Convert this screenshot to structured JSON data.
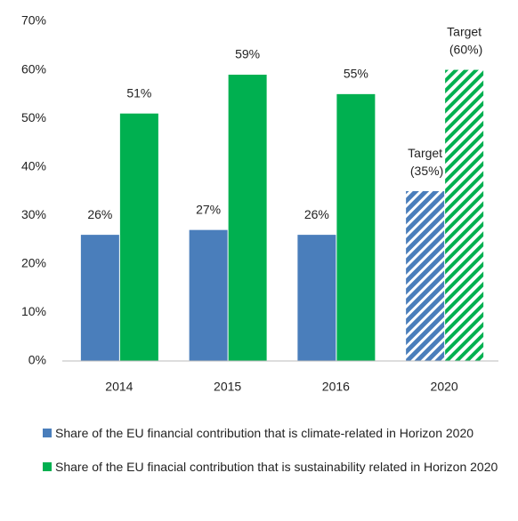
{
  "chart_data": {
    "type": "bar",
    "categories": [
      "2014",
      "2015",
      "2016",
      "2020"
    ],
    "series": [
      {
        "name": "Share of the EU financial contribution that is climate-related in Horizon 2020",
        "color": "#4a7ebb",
        "values": [
          26,
          27,
          26,
          35
        ],
        "value_labels": [
          "26%",
          "27%",
          "26%",
          "Target (35%)"
        ]
      },
      {
        "name": "Share of the EU finacial contribution that is sustainability related in Horizon 2020",
        "color": "#00b050",
        "values": [
          51,
          59,
          55,
          60
        ],
        "value_labels": [
          "51%",
          "59%",
          "55%",
          "Target (60%)"
        ]
      }
    ],
    "hatched": [
      false,
      false,
      false,
      true
    ],
    "ylim": [
      0,
      70
    ],
    "yticks": [
      {
        "value": 0,
        "label": "0%"
      },
      {
        "value": 10,
        "label": "10%"
      },
      {
        "value": 20,
        "label": "20%"
      },
      {
        "value": 30,
        "label": "30%"
      },
      {
        "value": 40,
        "label": "40%"
      },
      {
        "value": 50,
        "label": "50%"
      },
      {
        "value": 60,
        "label": "60%"
      },
      {
        "value": 70,
        "label": "70%"
      }
    ],
    "grid": false,
    "legend": "bottom"
  }
}
